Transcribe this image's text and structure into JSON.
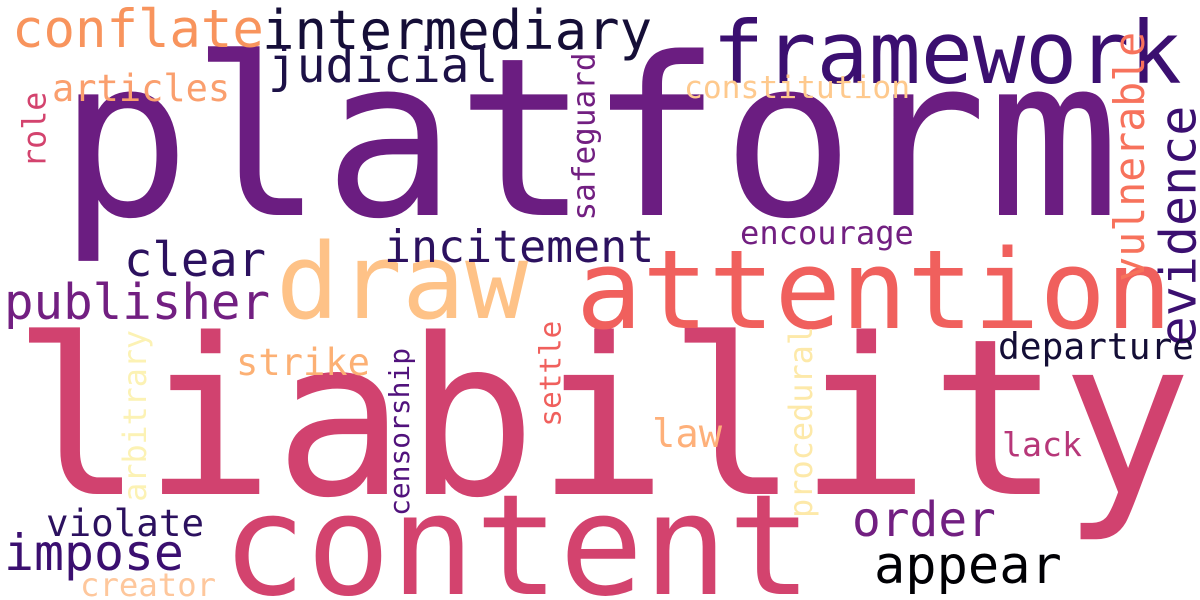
{
  "words": [
    {
      "text": "platform",
      "color": "#6b1d81"
    },
    {
      "text": "liability",
      "color": "#d1426f"
    },
    {
      "text": "content",
      "color": "#d3436e"
    },
    {
      "text": "attention",
      "color": "#f0605d"
    },
    {
      "text": "draw",
      "color": "#fec287"
    },
    {
      "text": "framework",
      "color": "#3b0f70"
    },
    {
      "text": "intermediary",
      "color": "#150e37"
    },
    {
      "text": "conflate",
      "color": "#f8945d"
    },
    {
      "text": "judicial",
      "color": "#1d1147"
    },
    {
      "text": "articles",
      "color": "#fa9f6e"
    },
    {
      "text": "role",
      "color": "#d3436e"
    },
    {
      "text": "constitution",
      "color": "#fec98d"
    },
    {
      "text": "safeguard",
      "color": "#721f81"
    },
    {
      "text": "vulnerable",
      "color": "#f7725c"
    },
    {
      "text": "evidence",
      "color": "#3b0f70"
    },
    {
      "text": "encourage",
      "color": "#721f81"
    },
    {
      "text": "clear",
      "color": "#2c115f"
    },
    {
      "text": "incitement",
      "color": "#2c115f"
    },
    {
      "text": "publisher",
      "color": "#721f81"
    },
    {
      "text": "departure",
      "color": "#140e36"
    },
    {
      "text": "strike",
      "color": "#fcb074"
    },
    {
      "text": "settle",
      "color": "#f0605d"
    },
    {
      "text": "censorship",
      "color": "#51127c"
    },
    {
      "text": "arbitrary",
      "color": "#fcf2b4"
    },
    {
      "text": "procedural",
      "color": "#fde9a9"
    },
    {
      "text": "law",
      "color": "#feb07a"
    },
    {
      "text": "lack",
      "color": "#b73779"
    },
    {
      "text": "order",
      "color": "#721f81"
    },
    {
      "text": "appear",
      "color": "#000004"
    },
    {
      "text": "violate",
      "color": "#2c115f"
    },
    {
      "text": "impose",
      "color": "#3b0f70"
    },
    {
      "text": "creator",
      "color": "#fec79c"
    }
  ]
}
